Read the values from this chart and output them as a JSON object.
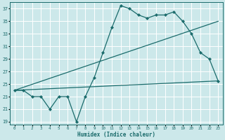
{
  "xlabel": "Humidex (Indice chaleur)",
  "bg_color": "#cce8ea",
  "line_color": "#1a6b6b",
  "grid_color": "#ffffff",
  "xlim": [
    -0.5,
    23.5
  ],
  "ylim": [
    18.5,
    38.0
  ],
  "yticks": [
    19,
    21,
    23,
    25,
    27,
    29,
    31,
    33,
    35,
    37
  ],
  "xticks": [
    0,
    1,
    2,
    3,
    4,
    5,
    6,
    7,
    8,
    9,
    10,
    11,
    12,
    13,
    14,
    15,
    16,
    17,
    18,
    19,
    20,
    21,
    22,
    23
  ],
  "line1_x": [
    0,
    1,
    2,
    3,
    4,
    5,
    6,
    7,
    8,
    9,
    10,
    11,
    12,
    13,
    14,
    15,
    16,
    17,
    18,
    19,
    20,
    21,
    22,
    23
  ],
  "line1_y": [
    24,
    24,
    23,
    23,
    21,
    23,
    23,
    19,
    23,
    26,
    30,
    34,
    37.5,
    37,
    36,
    35.5,
    36,
    36,
    36.5,
    35,
    33,
    30,
    29,
    25.5
  ],
  "line2_x": [
    0,
    23
  ],
  "line2_y": [
    24,
    35
  ],
  "line3_x": [
    0,
    23
  ],
  "line3_y": [
    24,
    25.5
  ],
  "marker_size": 2.2,
  "linewidth": 0.9
}
